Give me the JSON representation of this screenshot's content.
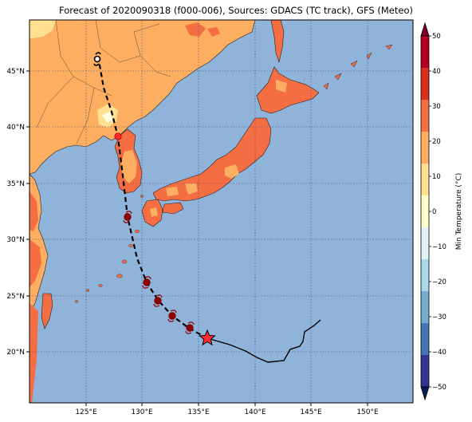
{
  "title": "Forecast of 2020090318 (f000-006), Sources: GDACS (TC track), GFS (Meteo)",
  "map": {
    "lon_ticks": [
      "125°E",
      "130°E",
      "135°E",
      "140°E",
      "145°E",
      "150°E"
    ],
    "lat_ticks": [
      "45°N",
      "40°N",
      "35°N",
      "30°N",
      "25°N",
      "20°N"
    ],
    "grid": true
  },
  "colorbar": {
    "label": "Min Temperature (°C)",
    "ticks": [
      "50",
      "40",
      "30",
      "20",
      "10",
      "0",
      "−10",
      "−20",
      "−30",
      "−40",
      "−50"
    ],
    "colors": [
      "#800026",
      "#b30026",
      "#d7301f",
      "#f46d43",
      "#fdae61",
      "#fee090",
      "#ffffcc",
      "#e0f3f8",
      "#abd9e9",
      "#74add1",
      "#4575b4",
      "#313695",
      "#081d58"
    ]
  },
  "colors": {
    "ocean": "#8fb3d9",
    "land_warm": "#fdae61",
    "land_hot": "#f46d43",
    "land_mild": "#fee090",
    "observed_track": "#000000",
    "forecast_track": "#000000",
    "cyclone_marker": "#8b0000",
    "current_position": "#ff3030"
  },
  "legend": {
    "current_marker": "star",
    "cyclone_symbol": "§"
  }
}
